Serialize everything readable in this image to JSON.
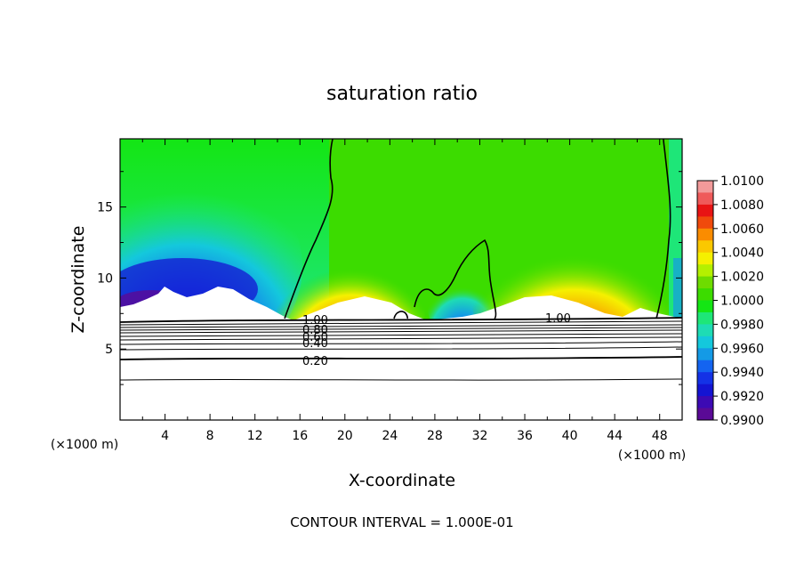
{
  "chart_data": {
    "type": "heatmap",
    "title": "saturation ratio",
    "xlabel": "X-coordinate",
    "ylabel": "Z-coordinate",
    "x_unit_left": "(×1000 m)",
    "x_unit_right": "(×1000 m)",
    "footer": "CONTOUR INTERVAL = 1.000E-01",
    "xlim": [
      0,
      50
    ],
    "ylim": [
      0,
      19.8
    ],
    "x_ticks": [
      4,
      8,
      12,
      16,
      20,
      24,
      28,
      32,
      36,
      40,
      44,
      48
    ],
    "x_tick_labels": [
      "4",
      "8",
      "12",
      "16",
      "20",
      "24",
      "28",
      "32",
      "36",
      "40",
      "44",
      "48"
    ],
    "y_ticks": [
      5,
      10,
      15
    ],
    "y_tick_labels": [
      "5",
      "10",
      "15"
    ],
    "colorbar": {
      "range": [
        0.99,
        1.01
      ],
      "tick_labels": [
        "1.0100",
        "1.0080",
        "1.0060",
        "1.0040",
        "1.0020",
        "1.0000",
        "0.9980",
        "0.9960",
        "0.9940",
        "0.9920",
        "0.9900"
      ],
      "colors": [
        "#f29a9a",
        "#ef5a5a",
        "#e81414",
        "#f04a0c",
        "#fa8c00",
        "#fac800",
        "#f5f000",
        "#b4f000",
        "#6edc00",
        "#3cdc00",
        "#14e614",
        "#1ee678",
        "#1edcb4",
        "#14c8dc",
        "#149ae6",
        "#1464f0",
        "#1432e6",
        "#1414d2",
        "#3c0ab4",
        "#5a0a96"
      ]
    },
    "contour_labels": [
      {
        "text": "1.00",
        "x": 15.8,
        "z": 7.3
      },
      {
        "text": "0.80",
        "x": 17.6,
        "z": 6.8
      },
      {
        "text": "0.60",
        "x": 17.6,
        "z": 6.1
      },
      {
        "text": "0.40",
        "x": 17.6,
        "z": 5.4
      },
      {
        "text": "0.20",
        "x": 17.6,
        "z": 4.3
      },
      {
        "text": "1.00",
        "x": 39.0,
        "z": 7.3
      }
    ],
    "contour_levels": [
      0.2,
      0.4,
      0.6,
      0.8,
      1.0
    ]
  }
}
